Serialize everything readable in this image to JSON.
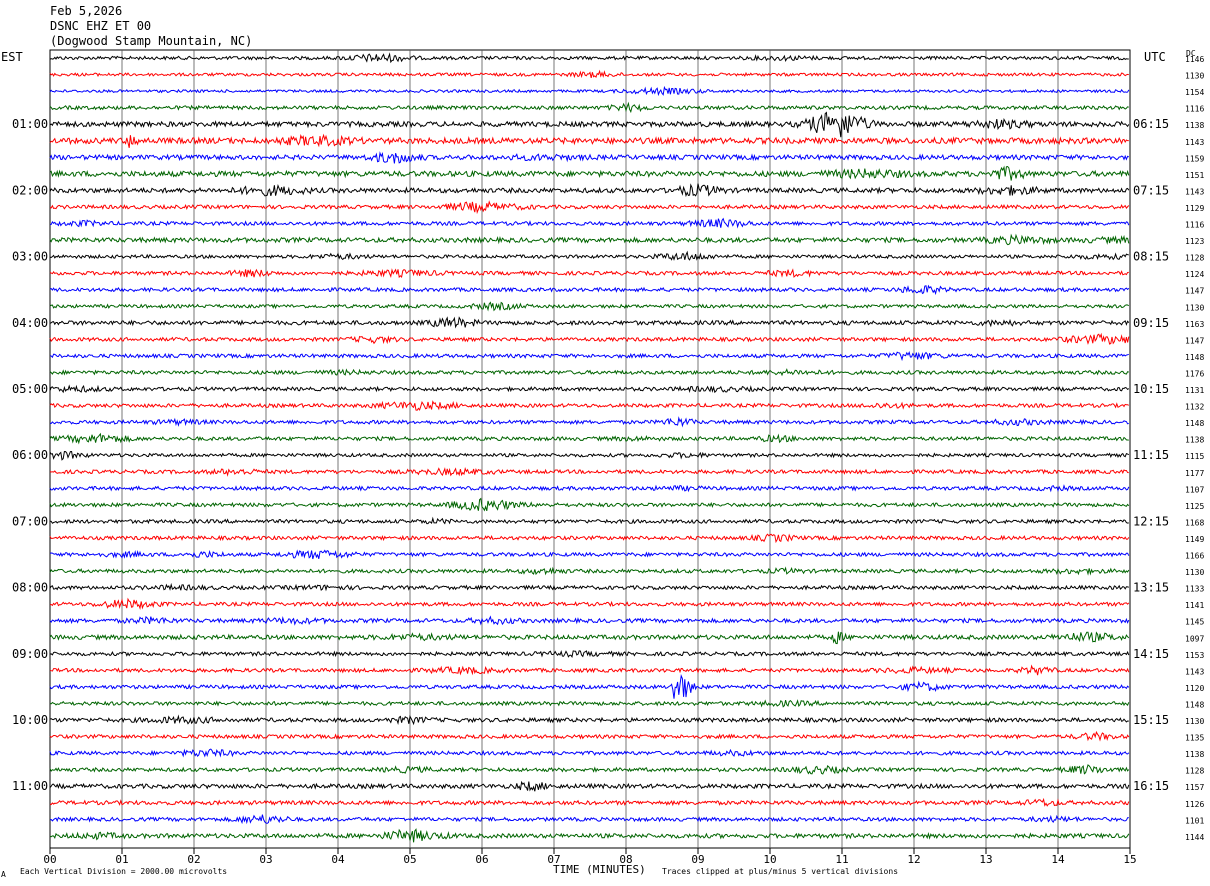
{
  "header": {
    "date": "Feb 5,2026",
    "station": "DSNC EHZ ET 00",
    "location": "(Dogwood Stamp Mountain, NC)"
  },
  "axis_labels": {
    "left_zone": "EST",
    "right_zone": "UTC",
    "dc_label": "DC",
    "xlabel": "TIME (MINUTES)"
  },
  "footer": {
    "division_note": "Each Vertical Division = 2000.00 microvolts",
    "clip_note": "Traces clipped at plus/minus 5 vertical divisions",
    "corner_mark": "A"
  },
  "chart_data": {
    "type": "line",
    "title": "",
    "xlabel": "TIME (MINUTES)",
    "xlim": [
      0,
      15
    ],
    "x_ticks": [
      "00",
      "01",
      "02",
      "03",
      "04",
      "05",
      "06",
      "07",
      "08",
      "09",
      "10",
      "11",
      "12",
      "13",
      "14",
      "15"
    ],
    "rows_per_hour": 4,
    "trace_colors": [
      "#000000",
      "#ff0000",
      "#0000ff",
      "#006400"
    ],
    "est_hour_labels": [
      "01:00",
      "02:00",
      "03:00",
      "04:00",
      "05:00",
      "06:00",
      "07:00",
      "08:00",
      "09:00",
      "10:00",
      "11:00"
    ],
    "utc_hour_labels": [
      "06:15",
      "07:15",
      "08:15",
      "09:15",
      "10:15",
      "11:15",
      "12:15",
      "13:15",
      "14:15",
      "15:15",
      "16:15"
    ],
    "dc_offsets": [
      1146,
      1130,
      1154,
      1116,
      1138,
      1143,
      1159,
      1151,
      1143,
      1129,
      1116,
      1123,
      1128,
      1124,
      1147,
      1130,
      1163,
      1147,
      1148,
      1176,
      1131,
      1132,
      1148,
      1138,
      1115,
      1177,
      1107,
      1125,
      1168,
      1149,
      1166,
      1130,
      1133,
      1141,
      1145,
      1097,
      1153,
      1143,
      1120,
      1148,
      1130,
      1135,
      1138,
      1128,
      1157,
      1126,
      1101,
      1144
    ],
    "noise_level": [
      0.2,
      0.18,
      0.16,
      0.22,
      0.3,
      0.35,
      0.28,
      0.32,
      0.28,
      0.22,
      0.22,
      0.28,
      0.2,
      0.22,
      0.22,
      0.2,
      0.25,
      0.22,
      0.22,
      0.22,
      0.22,
      0.22,
      0.22,
      0.22,
      0.2,
      0.22,
      0.22,
      0.22,
      0.22,
      0.22,
      0.22,
      0.22,
      0.22,
      0.22,
      0.24,
      0.26,
      0.22,
      0.22,
      0.22,
      0.22,
      0.24,
      0.22,
      0.22,
      0.22,
      0.26,
      0.24,
      0.22,
      0.26
    ],
    "events": [
      {
        "row": 38,
        "minute": 8.7,
        "amplitude_divisions": 1.6,
        "duration_minutes": 0.4
      },
      {
        "row": 35,
        "minute": 10.9,
        "amplitude_divisions": 0.5,
        "duration_minutes": 0.5
      },
      {
        "row": 7,
        "minute": 13.2,
        "amplitude_divisions": 0.5,
        "duration_minutes": 0.6
      },
      {
        "row": 5,
        "minute": 1.1,
        "amplitude_divisions": 0.5,
        "duration_minutes": 0.5
      }
    ]
  }
}
